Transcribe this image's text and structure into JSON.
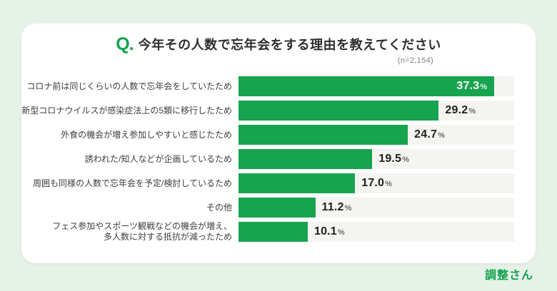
{
  "page": {
    "background_color": "#e6f1e8",
    "card_color": "#ffffff",
    "accent_color": "#12a24c"
  },
  "header": {
    "q_prefix": "Q.",
    "title": "今年その人数で忘年会をする理由を教えてください",
    "sample_note": "(n=2,154)"
  },
  "chart_data": {
    "type": "bar",
    "orientation": "horizontal",
    "title": "今年その人数で忘年会をする理由を教えてください",
    "sample_size": "n=2,154",
    "categories": [
      "コロナ前は同じくらいの人数で忘年会をしていたため",
      "新型コロナウイルスが感染症法上の5類に移行したため",
      "外食の機会が増え参加しやすいと感じたため",
      "誘われた/知人などが企画しているため",
      "周囲も同様の人数で忘年会を予定/検討しているため",
      "その他",
      "フェス参加やスポーツ観戦などの機会が増え、\n多人数に対する抵抗が減ったため"
    ],
    "values": [
      37.3,
      29.2,
      24.7,
      19.5,
      17.0,
      11.2,
      10.1
    ],
    "value_labels": [
      "37.3",
      "29.2",
      "24.7",
      "19.5",
      "17.0",
      "11.2",
      "10.1"
    ],
    "value_suffix": "%",
    "xlim": [
      0,
      40.2
    ],
    "grid": false,
    "legend": false,
    "bar_color": "#17a44e",
    "track_color": "#f4f5f1",
    "first_label_inside": true
  },
  "footer": {
    "logo_text": "調整さん"
  }
}
